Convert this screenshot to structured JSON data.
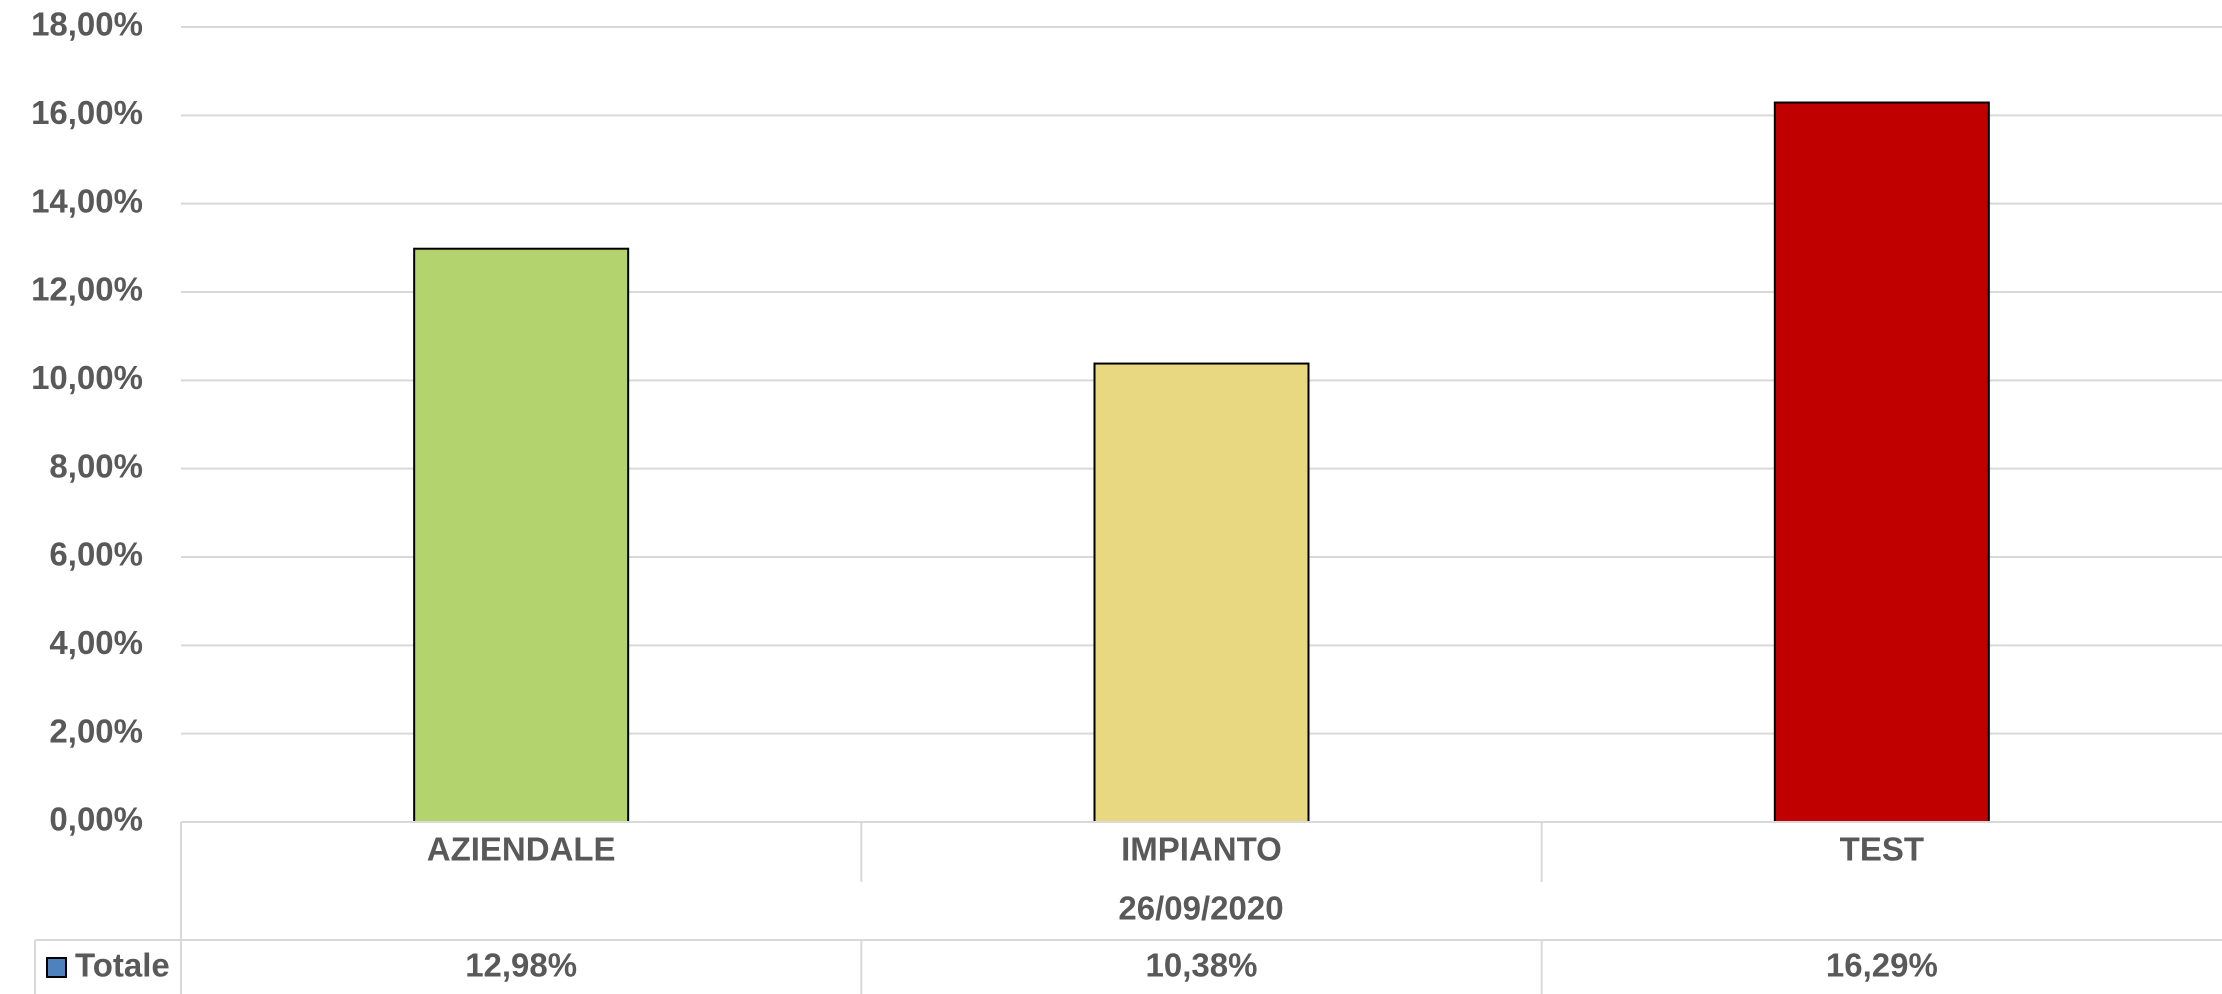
{
  "chart_data": {
    "type": "bar",
    "categories": [
      "AZIENDALE",
      "IMPIANTO",
      "TEST"
    ],
    "group_label": "26/09/2020",
    "series": [
      {
        "name": "Totale",
        "color": "#4f81bd",
        "values": [
          12.98,
          10.38,
          16.29
        ],
        "value_labels": [
          "12,98%",
          "10,38%",
          "16,29%"
        ]
      }
    ],
    "colors": [
      "#b3d36f",
      "#e8d882",
      "#c00000"
    ],
    "ylim": [
      0,
      18
    ],
    "yticks": [
      {
        "value": 0,
        "label": "0,00%"
      },
      {
        "value": 2,
        "label": "2,00%"
      },
      {
        "value": 4,
        "label": "4,00%"
      },
      {
        "value": 6,
        "label": "6,00%"
      },
      {
        "value": 8,
        "label": "8,00%"
      },
      {
        "value": 10,
        "label": "10,00%"
      },
      {
        "value": 12,
        "label": "12,00%"
      },
      {
        "value": 14,
        "label": "14,00%"
      },
      {
        "value": 16,
        "label": "16,00%"
      },
      {
        "value": 18,
        "label": "18,00%"
      }
    ],
    "grid": true
  }
}
